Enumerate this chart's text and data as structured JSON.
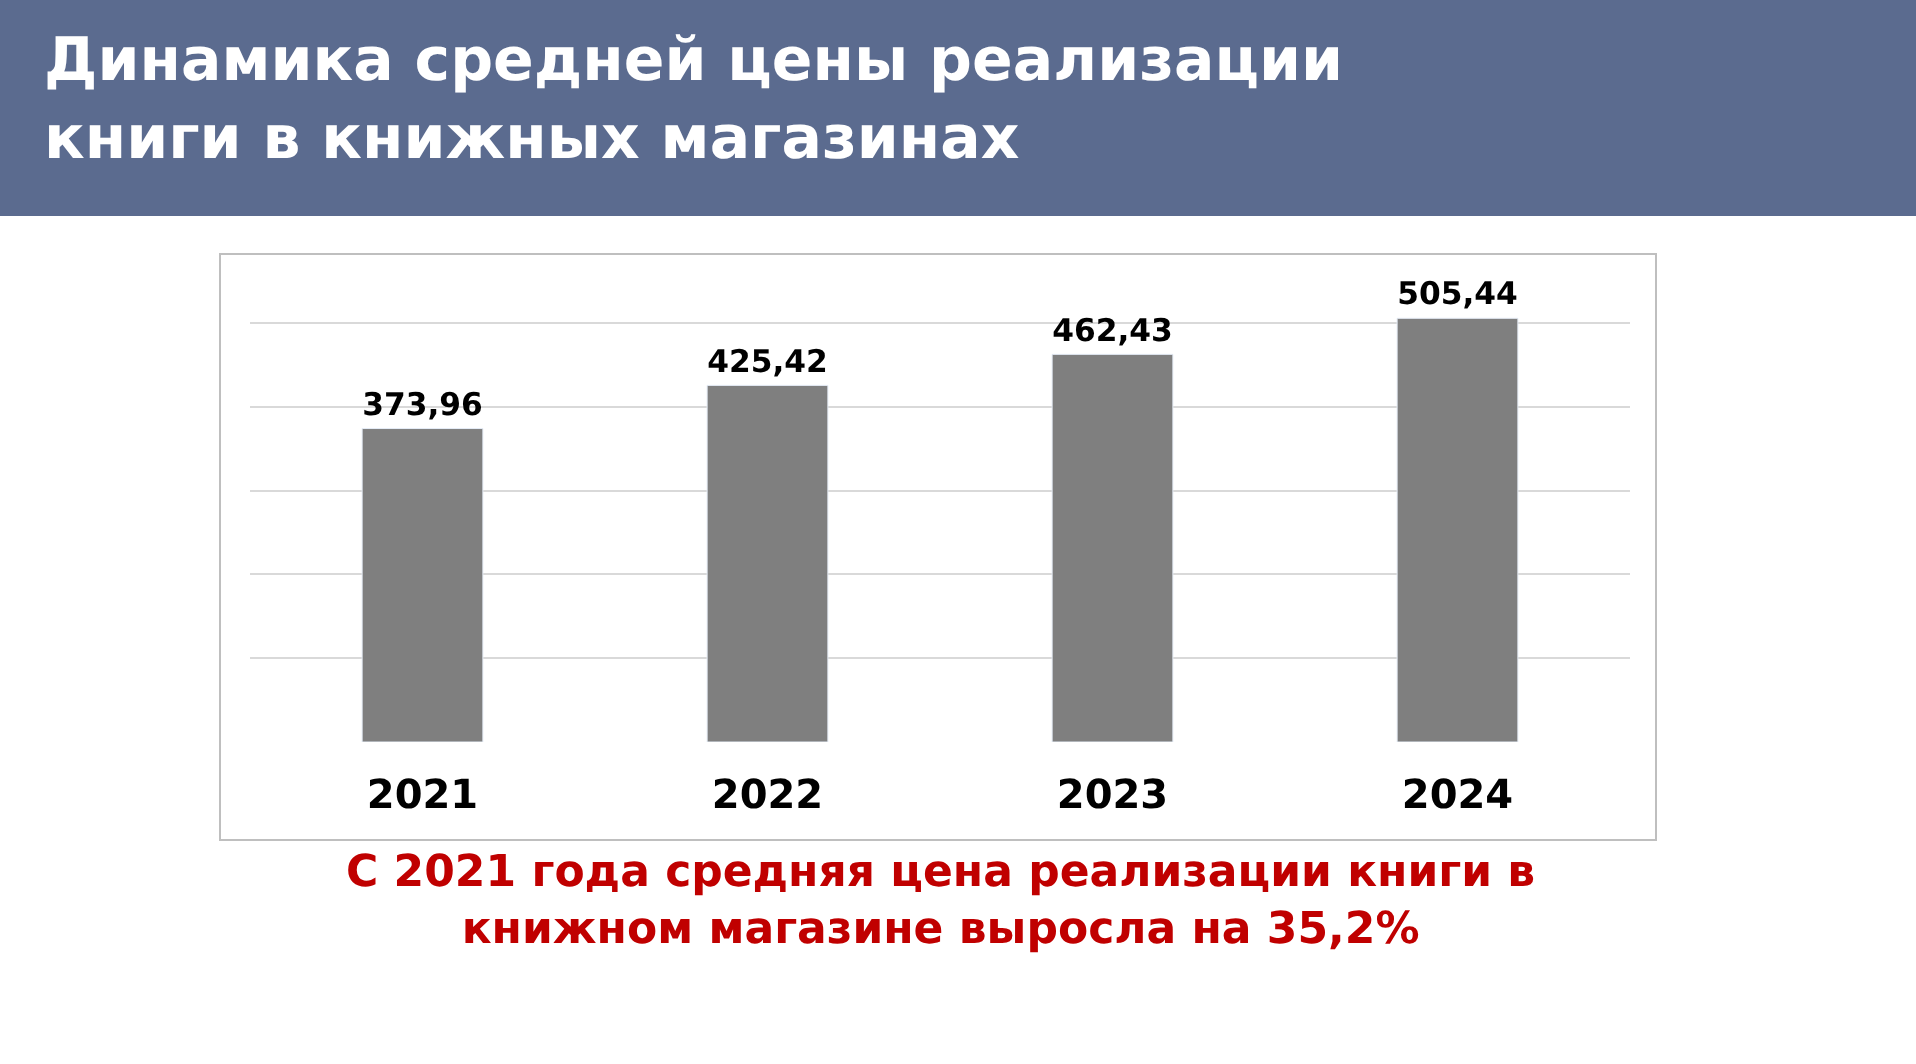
{
  "chart_data": {
    "type": "bar",
    "title": "Динамика средней цены реализации\nкниги в книжных магазинах",
    "categories": [
      "2021",
      "2022",
      "2023",
      "2024"
    ],
    "values": [
      373.96,
      425.42,
      462.43,
      505.44
    ],
    "value_labels": [
      "373,96",
      "425,42",
      "462,43",
      "505,44"
    ],
    "color": "#7f7f7f",
    "grid": "y",
    "tick_labels": "x",
    "legend": false,
    "annotations": [
      "С 2021 года средняя цена реализации книги в\nкнижном магазине выросла на 35,2%"
    ]
  }
}
